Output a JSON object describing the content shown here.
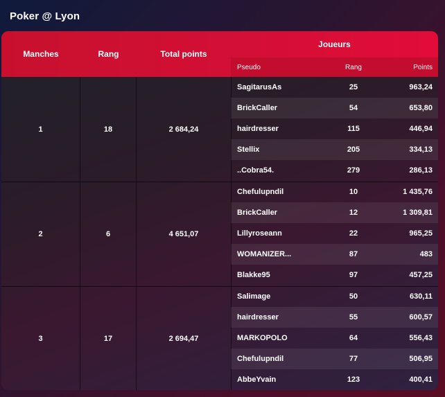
{
  "page": {
    "title": "Poker @ Lyon"
  },
  "table": {
    "headers": {
      "manches": "Manches",
      "rang": "Rang",
      "total_points": "Total points",
      "joueurs": "Joueurs"
    },
    "subheaders": {
      "pseudo": "Pseudo",
      "rang": "Rang",
      "points": "Points"
    },
    "groups": [
      {
        "manche": "1",
        "rang": "18",
        "total_points": "2 684,24",
        "players": [
          {
            "pseudo": "SagitarusAs",
            "rang": "25",
            "points": "963,24"
          },
          {
            "pseudo": "BrickCaller",
            "rang": "54",
            "points": "653,80"
          },
          {
            "pseudo": "hairdresser",
            "rang": "115",
            "points": "446,94"
          },
          {
            "pseudo": "Stellix",
            "rang": "205",
            "points": "334,13"
          },
          {
            "pseudo": "..Cobra54.",
            "rang": "279",
            "points": "286,13"
          }
        ]
      },
      {
        "manche": "2",
        "rang": "6",
        "total_points": "4 651,07",
        "players": [
          {
            "pseudo": "Chefulupndil",
            "rang": "10",
            "points": "1 435,76"
          },
          {
            "pseudo": "BrickCaller",
            "rang": "12",
            "points": "1 309,81"
          },
          {
            "pseudo": "Lillyroseann",
            "rang": "22",
            "points": "965,25"
          },
          {
            "pseudo": "WOMANIZER...",
            "rang": "87",
            "points": "483"
          },
          {
            "pseudo": "Blakke95",
            "rang": "97",
            "points": "457,25"
          }
        ]
      },
      {
        "manche": "3",
        "rang": "17",
        "total_points": "2 694,47",
        "players": [
          {
            "pseudo": "Salimage",
            "rang": "50",
            "points": "630,11"
          },
          {
            "pseudo": "hairdresser",
            "rang": "55",
            "points": "600,57"
          },
          {
            "pseudo": "MARKOPOLO",
            "rang": "64",
            "points": "556,43"
          },
          {
            "pseudo": "Chefulupndil",
            "rang": "77",
            "points": "506,95"
          },
          {
            "pseudo": "AbbeYvain",
            "rang": "123",
            "points": "400,41"
          }
        ]
      }
    ]
  }
}
